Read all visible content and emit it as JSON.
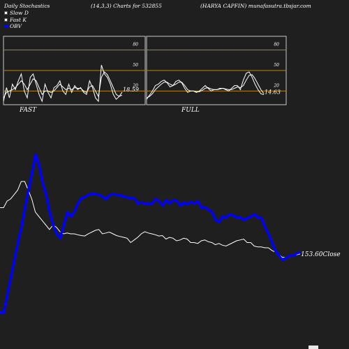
{
  "header": {
    "left": "Daily Stochastics",
    "middle": "(14,3,3) Charts for 532855",
    "right": "(HARYA CAPFIN) munafasutra.tbsjar.com"
  },
  "legend": [
    {
      "label": "Slow  D",
      "color": "#ffffff",
      "icon": "square-outline"
    },
    {
      "label": "Fast K",
      "color": "#ffffff",
      "icon": "square-outline"
    },
    {
      "label": "OBV",
      "color": "#0000ff",
      "icon": "square-filled"
    }
  ],
  "colors": {
    "background": "#1f1f1f",
    "panel_border": "#c8c8c8",
    "level_lines": "#b8860b",
    "obv": "#0000ff",
    "price": "#ffffff"
  },
  "chart_data": [
    {
      "type": "line",
      "panel": "FAST",
      "title": "FAST",
      "ylim": [
        0,
        100
      ],
      "level_lines": [
        20,
        50,
        80
      ],
      "y_tick_labels": [
        "80",
        "50",
        "20"
      ],
      "last_value_label": "18.59",
      "x": [
        0,
        1,
        2,
        3,
        4,
        5,
        6,
        7,
        8,
        9,
        10,
        11,
        12,
        13,
        14,
        15,
        16,
        17,
        18,
        19,
        20,
        21,
        22,
        23,
        24,
        25,
        26,
        27,
        28,
        29,
        30,
        31,
        32,
        33,
        34,
        35,
        36,
        37,
        38,
        39,
        40
      ],
      "series": [
        {
          "name": "Fast K",
          "color": "#ffffff",
          "values": [
            5,
            25,
            10,
            30,
            22,
            35,
            45,
            20,
            10,
            40,
            45,
            30,
            15,
            5,
            30,
            18,
            10,
            25,
            28,
            35,
            20,
            15,
            30,
            18,
            28,
            22,
            25,
            18,
            15,
            35,
            25,
            10,
            5,
            58,
            45,
            40,
            30,
            15,
            8,
            12,
            18.59
          ]
        },
        {
          "name": "Slow  D",
          "color": "#ffffff",
          "values": [
            10,
            18,
            20,
            22,
            25,
            30,
            35,
            30,
            22,
            30,
            38,
            35,
            25,
            15,
            20,
            20,
            18,
            20,
            25,
            30,
            26,
            22,
            24,
            22,
            25,
            24,
            24,
            20,
            18,
            26,
            28,
            20,
            12,
            40,
            48,
            44,
            35,
            25,
            15,
            12,
            14
          ]
        }
      ]
    },
    {
      "type": "line",
      "panel": "FULL",
      "title": "FULL",
      "ylim": [
        0,
        100
      ],
      "level_lines": [
        20,
        50,
        80
      ],
      "y_tick_labels": [
        "80",
        "50",
        "20"
      ],
      "last_value_label": "14.63",
      "x": [
        0,
        1,
        2,
        3,
        4,
        5,
        6,
        7,
        8,
        9,
        10,
        11,
        12,
        13,
        14,
        15,
        16,
        17,
        18,
        19,
        20,
        21,
        22,
        23,
        24,
        25,
        26,
        27,
        28,
        29,
        30,
        31,
        32,
        33,
        34,
        35,
        36,
        37,
        38,
        39,
        40
      ],
      "series": [
        {
          "name": "Fast K",
          "color": "#ffffff",
          "values": [
            8,
            14,
            20,
            28,
            30,
            34,
            36,
            32,
            26,
            28,
            34,
            36,
            32,
            24,
            18,
            20,
            20,
            18,
            20,
            24,
            28,
            24,
            20,
            22,
            22,
            24,
            24,
            22,
            20,
            24,
            28,
            28,
            22,
            36,
            46,
            48,
            40,
            30,
            22,
            16,
            14.63
          ]
        },
        {
          "name": "Slow  D",
          "color": "#ffffff",
          "values": [
            10,
            12,
            16,
            22,
            26,
            30,
            33,
            33,
            30,
            28,
            30,
            33,
            33,
            28,
            22,
            20,
            20,
            19,
            19,
            21,
            24,
            25,
            23,
            22,
            22,
            23,
            24,
            23,
            22,
            22,
            24,
            26,
            25,
            28,
            36,
            43,
            44,
            38,
            30,
            22,
            16
          ]
        }
      ]
    },
    {
      "type": "line",
      "panel": "OBV",
      "title": "",
      "last_value_label": "153.60Close",
      "x": [
        0,
        1,
        2,
        3,
        4,
        5,
        6,
        7,
        8,
        9,
        10,
        11,
        12,
        13,
        14,
        15,
        16,
        17,
        18,
        19,
        20,
        21,
        22,
        23,
        24,
        25,
        26,
        27,
        28,
        29,
        30,
        31,
        32,
        33,
        34,
        35,
        36,
        37,
        38,
        39,
        40,
        41,
        42,
        43,
        44,
        45,
        46,
        47,
        48,
        49,
        50,
        51,
        52,
        53,
        54,
        55,
        56,
        57,
        58,
        59,
        60,
        61,
        62,
        63,
        64,
        65,
        66,
        67,
        68,
        69,
        70,
        71,
        72,
        73,
        74,
        75,
        76,
        77,
        78,
        79,
        80,
        81,
        82,
        83,
        84,
        85
      ],
      "series": [
        {
          "name": "OBV",
          "color": "#0000ff",
          "values": [
            20,
            20,
            60,
            100,
            140,
            180,
            215,
            260,
            300,
            340,
            382,
            358,
            318,
            290,
            250,
            220,
            200,
            190,
            220,
            250,
            240,
            250,
            270,
            282,
            285,
            290,
            292,
            291,
            290,
            285,
            280,
            290,
            291,
            290,
            289,
            285,
            284,
            282,
            281,
            270,
            272,
            270,
            268,
            270,
            280,
            275,
            265,
            278,
            270,
            278,
            276,
            265,
            272,
            268,
            273,
            270,
            275,
            260,
            262,
            255,
            250,
            232,
            228,
            240,
            238,
            245,
            242,
            238,
            238,
            232,
            236,
            240,
            245,
            238,
            236,
            215,
            200,
            180,
            160,
            150,
            140,
            145,
            150,
            150,
            155,
            158
          ]
        },
        {
          "name": "Price",
          "color": "#ffffff",
          "values": [
            260,
            260,
            275,
            280,
            290,
            300,
            320,
            320,
            300,
            280,
            250,
            240,
            230,
            220,
            210,
            220,
            215,
            205,
            200,
            202,
            200,
            200,
            198,
            196,
            195,
            200,
            204,
            208,
            210,
            200,
            202,
            204,
            200,
            196,
            194,
            192,
            190,
            180,
            186,
            192,
            200,
            205,
            202,
            200,
            198,
            195,
            196,
            188,
            192,
            190,
            184,
            186,
            190,
            188,
            180,
            180,
            178,
            184,
            186,
            182,
            180,
            175,
            178,
            174,
            172,
            176,
            180,
            184,
            186,
            188,
            180,
            180,
            172,
            170,
            170,
            168,
            168,
            162,
            158,
            152,
            146,
            146,
            148,
            150,
            152,
            154
          ]
        }
      ]
    }
  ]
}
